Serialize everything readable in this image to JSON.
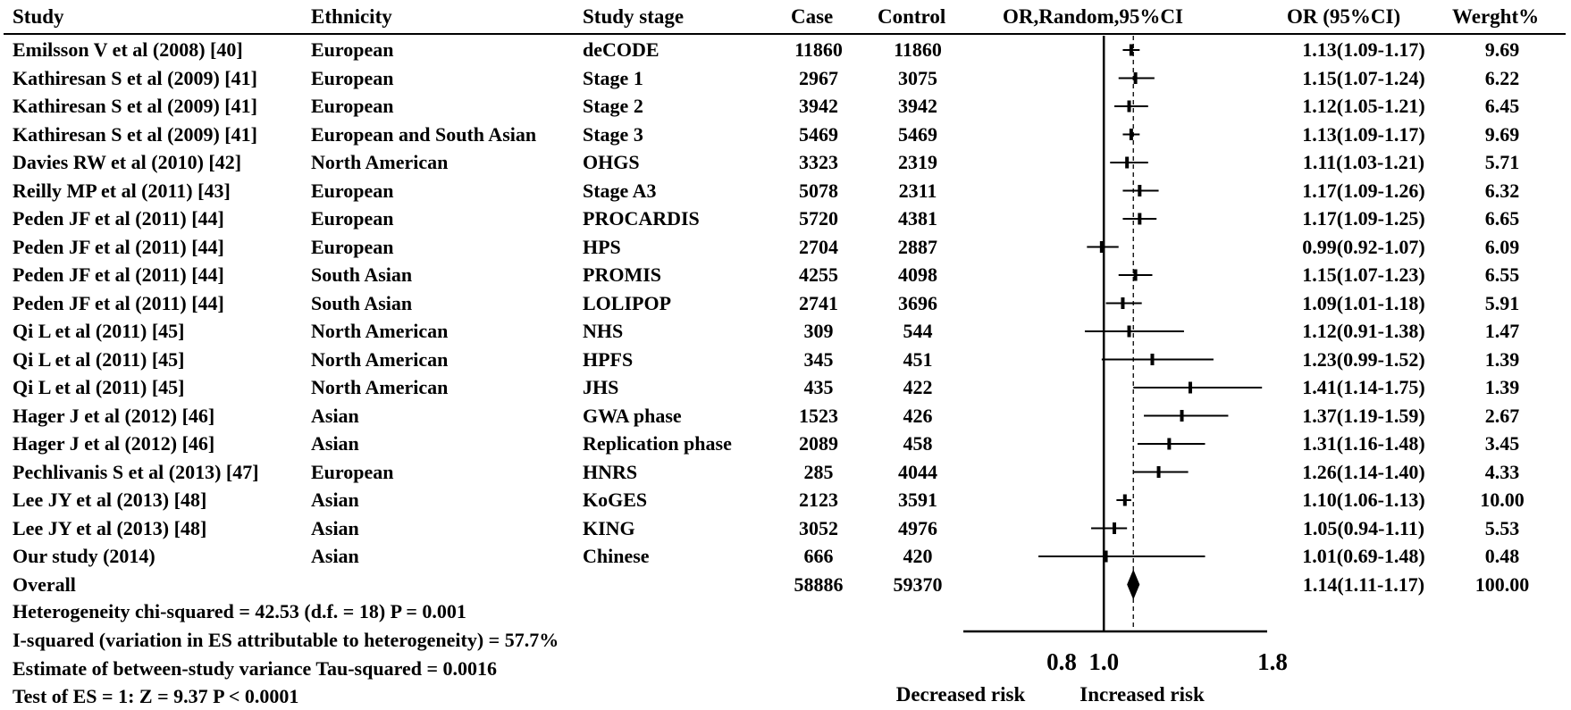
{
  "header": {
    "study": "Study",
    "ethnicity": "Ethnicity",
    "stage": "Study stage",
    "case": "Case",
    "control": "Control",
    "plot": "OR,Random,95%CI",
    "or": "OR (95%CI)",
    "weight": "Werght%"
  },
  "chart_data": {
    "type": "forest",
    "xscale": "linear",
    "xlim": [
      0.8,
      1.8
    ],
    "xticks": [
      0.8,
      1.0,
      1.8
    ],
    "xtick_labels": [
      "0.8",
      "1.0",
      "1.8"
    ],
    "null_value": 1.0,
    "pooled_estimate": 1.14,
    "left_label": "Decreased risk",
    "right_label": "Increased risk",
    "studies": [
      {
        "study": "Emilsson V et al (2008) [40]",
        "ethnicity": "European",
        "stage": "deCODE",
        "case": "11860",
        "control": "11860",
        "or": 1.13,
        "lo": 1.09,
        "hi": 1.17,
        "or_text": "1.13(1.09-1.17)",
        "weight": "9.69"
      },
      {
        "study": "Kathiresan S et al (2009) [41]",
        "ethnicity": "European",
        "stage": "Stage 1",
        "case": "2967",
        "control": "3075",
        "or": 1.15,
        "lo": 1.07,
        "hi": 1.24,
        "or_text": "1.15(1.07-1.24)",
        "weight": "6.22"
      },
      {
        "study": "Kathiresan S et al (2009) [41]",
        "ethnicity": "European",
        "stage": "Stage 2",
        "case": "3942",
        "control": "3942",
        "or": 1.12,
        "lo": 1.05,
        "hi": 1.21,
        "or_text": "1.12(1.05-1.21)",
        "weight": "6.45"
      },
      {
        "study": "Kathiresan S et al (2009) [41]",
        "ethnicity": "European and South Asian",
        "stage": "Stage 3",
        "case": "5469",
        "control": "5469",
        "or": 1.13,
        "lo": 1.09,
        "hi": 1.17,
        "or_text": "1.13(1.09-1.17)",
        "weight": "9.69"
      },
      {
        "study": "Davies RW et al (2010) [42]",
        "ethnicity": "North American",
        "stage": "OHGS",
        "case": "3323",
        "control": "2319",
        "or": 1.11,
        "lo": 1.03,
        "hi": 1.21,
        "or_text": "1.11(1.03-1.21)",
        "weight": "5.71"
      },
      {
        "study": "Reilly MP et al (2011) [43]",
        "ethnicity": "European",
        "stage": "Stage A3",
        "case": "5078",
        "control": "2311",
        "or": 1.17,
        "lo": 1.09,
        "hi": 1.26,
        "or_text": "1.17(1.09-1.26)",
        "weight": "6.32"
      },
      {
        "study": "Peden JF et al (2011) [44]",
        "ethnicity": "European",
        "stage": "PROCARDIS",
        "case": "5720",
        "control": "4381",
        "or": 1.17,
        "lo": 1.09,
        "hi": 1.25,
        "or_text": "1.17(1.09-1.25)",
        "weight": "6.65"
      },
      {
        "study": "Peden JF et al (2011) [44]",
        "ethnicity": "European",
        "stage": "HPS",
        "case": "2704",
        "control": "2887",
        "or": 0.99,
        "lo": 0.92,
        "hi": 1.07,
        "or_text": "0.99(0.92-1.07)",
        "weight": "6.09"
      },
      {
        "study": "Peden JF et al (2011) [44]",
        "ethnicity": "South Asian",
        "stage": "PROMIS",
        "case": "4255",
        "control": "4098",
        "or": 1.15,
        "lo": 1.07,
        "hi": 1.23,
        "or_text": "1.15(1.07-1.23)",
        "weight": "6.55"
      },
      {
        "study": "Peden JF et al (2011) [44]",
        "ethnicity": "South Asian",
        "stage": "LOLIPOP",
        "case": "2741",
        "control": "3696",
        "or": 1.09,
        "lo": 1.01,
        "hi": 1.18,
        "or_text": "1.09(1.01-1.18)",
        "weight": "5.91"
      },
      {
        "study": "Qi L et al (2011) [45]",
        "ethnicity": "North American",
        "stage": "NHS",
        "case": "309",
        "control": "544",
        "or": 1.12,
        "lo": 0.91,
        "hi": 1.38,
        "or_text": "1.12(0.91-1.38)",
        "weight": "1.47"
      },
      {
        "study": "Qi L et al (2011) [45]",
        "ethnicity": "North American",
        "stage": "HPFS",
        "case": "345",
        "control": "451",
        "or": 1.23,
        "lo": 0.99,
        "hi": 1.52,
        "or_text": "1.23(0.99-1.52)",
        "weight": "1.39"
      },
      {
        "study": "Qi L et al (2011) [45]",
        "ethnicity": "North American",
        "stage": "JHS",
        "case": "435",
        "control": "422",
        "or": 1.41,
        "lo": 1.14,
        "hi": 1.75,
        "or_text": "1.41(1.14-1.75)",
        "weight": "1.39"
      },
      {
        "study": "Hager J et al (2012) [46]",
        "ethnicity": "Asian",
        "stage": "GWA phase",
        "case": "1523",
        "control": "426",
        "or": 1.37,
        "lo": 1.19,
        "hi": 1.59,
        "or_text": "1.37(1.19-1.59)",
        "weight": "2.67"
      },
      {
        "study": "Hager J et al (2012) [46]",
        "ethnicity": "Asian",
        "stage": "Replication phase",
        "case": "2089",
        "control": "458",
        "or": 1.31,
        "lo": 1.16,
        "hi": 1.48,
        "or_text": "1.31(1.16-1.48)",
        "weight": "3.45"
      },
      {
        "study": "Pechlivanis S et al (2013) [47]",
        "ethnicity": "European",
        "stage": "HNRS",
        "case": "285",
        "control": "4044",
        "or": 1.26,
        "lo": 1.14,
        "hi": 1.4,
        "or_text": "1.26(1.14-1.40)",
        "weight": "4.33"
      },
      {
        "study": "Lee JY et al (2013) [48]",
        "ethnicity": "Asian",
        "stage": "KoGES",
        "case": "2123",
        "control": "3591",
        "or": 1.1,
        "lo": 1.06,
        "hi": 1.13,
        "or_text": "1.10(1.06-1.13)",
        "weight": "10.00"
      },
      {
        "study": "Lee JY et al (2013) [48]",
        "ethnicity": "Asian",
        "stage": "KING",
        "case": "3052",
        "control": "4976",
        "or": 1.05,
        "lo": 0.94,
        "hi": 1.11,
        "or_text": "1.05(0.94-1.11)",
        "weight": "5.53"
      },
      {
        "study": "Our study (2014)",
        "ethnicity": "Asian",
        "stage": "Chinese",
        "case": "666",
        "control": "420",
        "or": 1.01,
        "lo": 0.69,
        "hi": 1.48,
        "or_text": "1.01(0.69-1.48)",
        "weight": "0.48"
      }
    ],
    "overall": {
      "label": "Overall",
      "case": "58886",
      "control": "59370",
      "or": 1.14,
      "lo": 1.11,
      "hi": 1.17,
      "or_text": "1.14(1.11-1.17)",
      "weight": "100.00"
    }
  },
  "stats": {
    "heterogeneity": "Heterogeneity chi-squared = 42.53 (d.f. = 18) P = 0.001",
    "isquared": "I-squared (variation in ES attributable to heterogeneity) = 57.7%",
    "tau": "Estimate of between-study variance Tau-squared = 0.0016",
    "test": "Test of ES = 1: Z = 9.37 P < 0.0001"
  }
}
